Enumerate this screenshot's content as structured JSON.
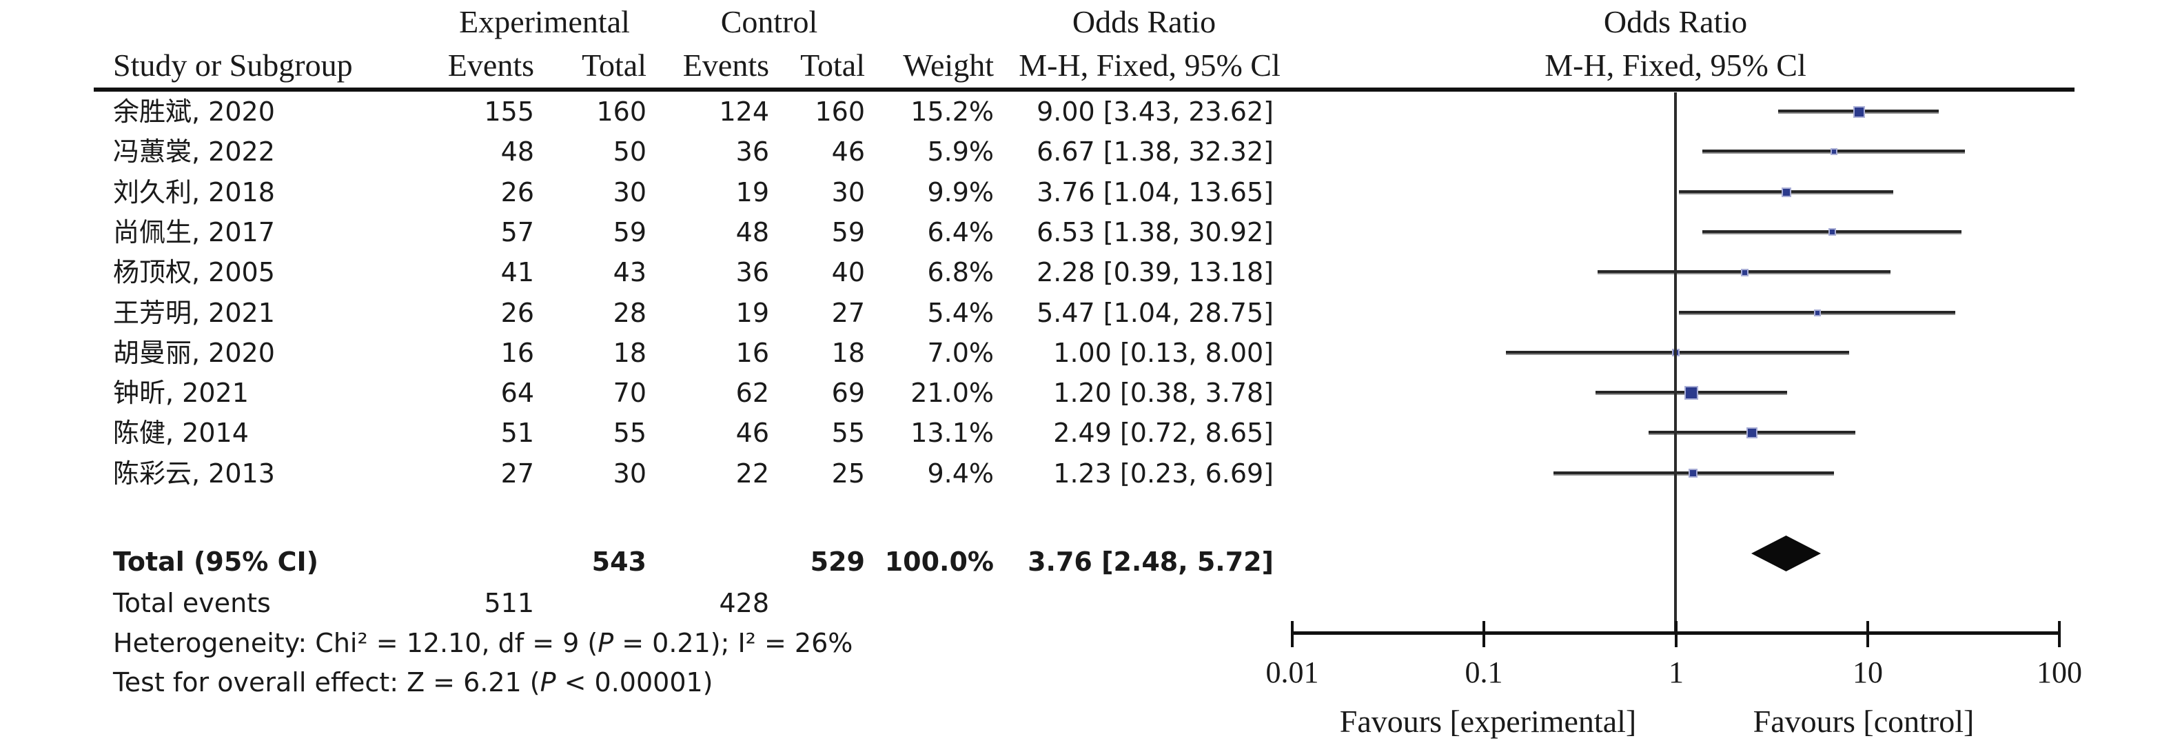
{
  "title_row": {
    "experimental": "Experimental",
    "control": "Control",
    "odds_ratio_left": "Odds Ratio",
    "odds_ratio_right": "Odds Ratio"
  },
  "header_row": {
    "study": "Study or Subgroup",
    "events_exp": "Events",
    "total_exp": "Total",
    "events_ctrl": "Events",
    "total_ctrl": "Total",
    "weight": "Weight",
    "mh_left": "M-H, Fixed, 95% Cl",
    "mh_right": "M-H, Fixed, 95% Cl"
  },
  "totals": {
    "label": "Total (95% CI)",
    "exp_total": 543,
    "ctrl_total": 529,
    "weight_label": "100.0%",
    "events_label": "Total events",
    "exp_events": 511,
    "ctrl_events": 428
  },
  "footer": {
    "het_pre": "Heterogeneity: Chi² = 12.10, df = 9 (",
    "het_p": "P",
    "het_post": " = 0.21); I² = 26%",
    "z_pre": "Test for overall effect: Z = 6.21 (",
    "z_p": "P",
    "z_post": " < 0.00001)"
  },
  "colors": {
    "square_fill": "#2b3a8c",
    "square_border": "#a9aed6",
    "line": "#262626",
    "diamond": "#0a0a0a"
  },
  "chart_data": {
    "type": "scatter",
    "subtype": "forest-plot",
    "effect_measure": "Odds Ratio, M-H, Fixed, 95% CI",
    "x_scale": "log10",
    "x_range": [
      0.01,
      100
    ],
    "x_ticks": [
      0.01,
      0.1,
      1,
      10,
      100
    ],
    "x_tick_labels": [
      "0.01",
      "0.1",
      "1",
      "10",
      "100"
    ],
    "favours_left": "Favours [experimental]",
    "favours_right": "Favours [control]",
    "studies": [
      {
        "name": "余胜斌, 2020",
        "exp_events": 155,
        "exp_total": 160,
        "ctrl_events": 124,
        "ctrl_total": 160,
        "weight_pct": 15.2,
        "or": 9.0,
        "ci_low": 3.43,
        "ci_high": 23.62
      },
      {
        "name": "冯蕙裳, 2022",
        "exp_events": 48,
        "exp_total": 50,
        "ctrl_events": 36,
        "ctrl_total": 46,
        "weight_pct": 5.9,
        "or": 6.67,
        "ci_low": 1.38,
        "ci_high": 32.32
      },
      {
        "name": "刘久利, 2018",
        "exp_events": 26,
        "exp_total": 30,
        "ctrl_events": 19,
        "ctrl_total": 30,
        "weight_pct": 9.9,
        "or": 3.76,
        "ci_low": 1.04,
        "ci_high": 13.65
      },
      {
        "name": "尚佩生, 2017",
        "exp_events": 57,
        "exp_total": 59,
        "ctrl_events": 48,
        "ctrl_total": 59,
        "weight_pct": 6.4,
        "or": 6.53,
        "ci_low": 1.38,
        "ci_high": 30.92
      },
      {
        "name": "杨顶权, 2005",
        "exp_events": 41,
        "exp_total": 43,
        "ctrl_events": 36,
        "ctrl_total": 40,
        "weight_pct": 6.8,
        "or": 2.28,
        "ci_low": 0.39,
        "ci_high": 13.18
      },
      {
        "name": "王芳明, 2021",
        "exp_events": 26,
        "exp_total": 28,
        "ctrl_events": 19,
        "ctrl_total": 27,
        "weight_pct": 5.4,
        "or": 5.47,
        "ci_low": 1.04,
        "ci_high": 28.75
      },
      {
        "name": "胡曼丽, 2020",
        "exp_events": 16,
        "exp_total": 18,
        "ctrl_events": 16,
        "ctrl_total": 18,
        "weight_pct": 7.0,
        "or": 1.0,
        "ci_low": 0.13,
        "ci_high": 8.0
      },
      {
        "name": "钟昕, 2021",
        "exp_events": 64,
        "exp_total": 70,
        "ctrl_events": 62,
        "ctrl_total": 69,
        "weight_pct": 21.0,
        "or": 1.2,
        "ci_low": 0.38,
        "ci_high": 3.78
      },
      {
        "name": "陈健, 2014",
        "exp_events": 51,
        "exp_total": 55,
        "ctrl_events": 46,
        "ctrl_total": 55,
        "weight_pct": 13.1,
        "or": 2.49,
        "ci_low": 0.72,
        "ci_high": 8.65
      },
      {
        "name": "陈彩云, 2013",
        "exp_events": 27,
        "exp_total": 30,
        "ctrl_events": 22,
        "ctrl_total": 25,
        "weight_pct": 9.4,
        "or": 1.23,
        "ci_low": 0.23,
        "ci_high": 6.69
      }
    ],
    "total": {
      "or": 3.76,
      "ci_low": 2.48,
      "ci_high": 5.72
    }
  }
}
